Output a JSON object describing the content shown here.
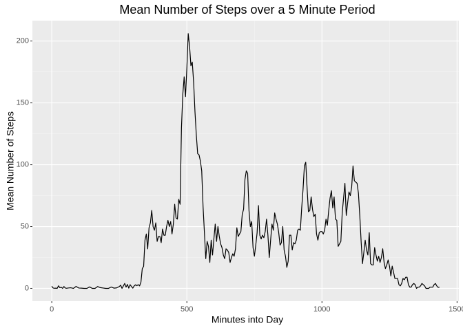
{
  "chart_data": {
    "type": "line",
    "title": "Mean Number of Steps over a 5 Minute Period",
    "x_label": "Minutes into Day",
    "y_label": "Mean Number of Steps",
    "color": "#000000",
    "grid": true,
    "xlim": [
      -71.75,
      1506.75
    ],
    "ylim": [
      -10.3,
      216.5
    ],
    "xticks": [
      0,
      500,
      1000,
      1500
    ],
    "yticks": [
      0,
      50,
      100,
      150,
      200
    ],
    "x": [
      0,
      5,
      10,
      15,
      20,
      25,
      30,
      35,
      40,
      45,
      50,
      55,
      60,
      70,
      80,
      90,
      100,
      110,
      120,
      130,
      140,
      150,
      160,
      170,
      180,
      190,
      200,
      210,
      220,
      230,
      240,
      250,
      255,
      260,
      270,
      275,
      280,
      285,
      290,
      295,
      300,
      305,
      310,
      315,
      320,
      325,
      330,
      335,
      340,
      345,
      350,
      355,
      360,
      365,
      370,
      375,
      380,
      385,
      390,
      395,
      400,
      405,
      410,
      415,
      420,
      425,
      430,
      435,
      440,
      445,
      450,
      455,
      460,
      465,
      470,
      475,
      480,
      485,
      490,
      495,
      500,
      505,
      510,
      515,
      520,
      525,
      530,
      535,
      540,
      545,
      550,
      555,
      560,
      565,
      570,
      575,
      580,
      585,
      590,
      595,
      600,
      605,
      610,
      615,
      620,
      625,
      630,
      635,
      640,
      645,
      650,
      655,
      660,
      665,
      670,
      675,
      680,
      685,
      690,
      695,
      700,
      705,
      710,
      715,
      720,
      725,
      730,
      735,
      740,
      745,
      750,
      755,
      760,
      765,
      770,
      775,
      780,
      785,
      790,
      795,
      800,
      805,
      810,
      815,
      820,
      825,
      830,
      835,
      840,
      845,
      850,
      855,
      860,
      865,
      870,
      875,
      880,
      885,
      890,
      895,
      900,
      905,
      910,
      915,
      920,
      925,
      930,
      935,
      940,
      945,
      950,
      955,
      960,
      965,
      970,
      975,
      980,
      985,
      990,
      995,
      1000,
      1005,
      1010,
      1015,
      1020,
      1025,
      1030,
      1035,
      1040,
      1045,
      1050,
      1055,
      1060,
      1065,
      1070,
      1075,
      1080,
      1085,
      1090,
      1095,
      1100,
      1105,
      1110,
      1115,
      1120,
      1125,
      1130,
      1135,
      1140,
      1145,
      1150,
      1155,
      1160,
      1165,
      1170,
      1175,
      1180,
      1185,
      1190,
      1195,
      1200,
      1205,
      1210,
      1215,
      1220,
      1225,
      1230,
      1235,
      1240,
      1245,
      1250,
      1255,
      1260,
      1265,
      1270,
      1275,
      1280,
      1285,
      1290,
      1295,
      1300,
      1305,
      1310,
      1315,
      1320,
      1325,
      1330,
      1335,
      1340,
      1345,
      1350,
      1355,
      1360,
      1365,
      1370,
      1375,
      1380,
      1385,
      1390,
      1395,
      1400,
      1405,
      1410,
      1415,
      1420,
      1425,
      1430,
      1435
    ],
    "values": [
      1.7,
      0.3,
      0.1,
      0.2,
      0,
      2.1,
      0.5,
      0.9,
      0,
      1.5,
      0.3,
      0.1,
      0.3,
      0.5,
      0,
      1.6,
      0.3,
      0.2,
      0,
      0,
      1.2,
      0,
      0,
      1.5,
      0.6,
      0.3,
      0,
      0,
      1.1,
      0.2,
      0.4,
      1.5,
      2.6,
      0,
      4,
      1,
      3.2,
      0.2,
      3,
      1.5,
      0.2,
      2,
      2.9,
      2.2,
      3,
      2,
      5,
      16,
      17.8,
      39,
      44,
      32,
      49,
      53,
      63,
      50,
      47,
      53,
      38,
      42,
      42,
      37,
      48,
      43,
      43,
      50,
      55,
      50,
      54,
      44,
      52,
      68,
      57,
      56,
      72,
      68,
      130,
      157,
      171,
      155,
      178,
      206,
      196,
      180,
      183,
      167,
      143,
      124,
      109,
      108,
      103,
      95,
      66,
      45,
      24,
      38,
      34,
      21,
      39,
      27,
      40,
      52,
      38,
      50,
      42,
      36,
      33,
      27,
      24,
      32,
      31,
      29,
      21,
      25,
      28,
      26,
      32,
      49,
      42,
      44,
      46,
      60,
      64,
      88,
      95,
      93,
      63,
      50,
      54,
      33,
      26,
      35,
      45,
      67,
      43,
      40,
      43,
      41,
      46,
      56,
      43,
      25,
      39,
      52,
      47,
      61,
      56,
      52,
      45,
      35,
      37,
      50,
      31,
      26,
      17,
      22,
      43,
      43,
      31,
      37,
      36,
      39,
      47,
      48,
      47,
      65,
      80,
      99,
      102,
      81,
      62,
      63,
      74,
      64,
      58,
      60,
      44,
      39,
      45,
      46,
      46,
      44,
      47,
      56,
      51,
      63,
      73,
      79,
      65,
      74,
      56,
      55,
      34,
      36,
      38,
      61,
      73,
      85,
      59,
      69,
      78,
      75,
      82,
      99,
      87,
      86,
      85,
      77,
      59,
      38,
      20,
      29,
      39,
      31,
      27,
      45,
      20,
      19,
      19,
      33,
      27,
      22,
      26,
      21,
      25,
      32,
      21,
      16,
      19,
      23,
      18,
      10,
      18,
      13,
      8,
      8,
      8,
      3,
      2,
      4,
      8,
      7,
      9,
      9,
      3,
      1,
      1,
      3,
      4,
      3,
      0,
      1,
      1,
      2,
      4,
      3,
      2,
      0,
      0,
      0,
      1,
      1,
      1,
      3,
      4,
      2,
      0.8,
      1
    ]
  }
}
